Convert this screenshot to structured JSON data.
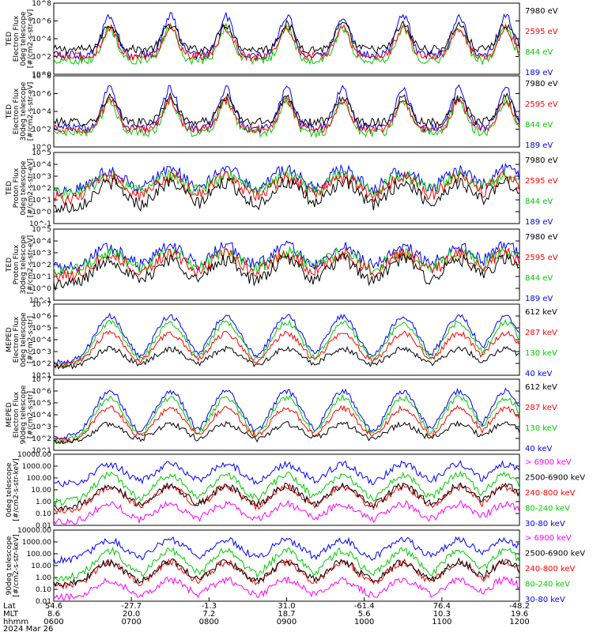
{
  "chart_data": {
    "type": "line",
    "x_header_labels": [
      "Lat",
      "MLT",
      "hhmm"
    ],
    "date": "2024 Mar 26",
    "x_ticks": [
      {
        "lat": "54.6",
        "mlt": "8.6",
        "hhmm": "0600"
      },
      {
        "lat": "-27.7",
        "mlt": "20.0",
        "hhmm": "0700"
      },
      {
        "lat": "-1.3",
        "mlt": "7.2",
        "hhmm": "0800"
      },
      {
        "lat": "31.0",
        "mlt": "18.7",
        "hhmm": "0900"
      },
      {
        "lat": "-61.4",
        "mlt": "5.6",
        "hhmm": "1000"
      },
      {
        "lat": "76.4",
        "mlt": "10.3",
        "hhmm": "1100"
      },
      {
        "lat": "-48.2",
        "mlt": "19.6",
        "hhmm": "1200"
      }
    ],
    "panels": [
      {
        "ylabel": [
          "TED",
          "Electron Flux",
          "0deg telescope",
          "[#/cm2-s-str-eV]"
        ],
        "yscale": "log",
        "ylim_exp": [
          0,
          8
        ],
        "yticks": [
          "10^0",
          "10^2",
          "10^4",
          "10^6",
          "10^8"
        ],
        "legend": [
          {
            "label": "7980 eV",
            "color": "#000000"
          },
          {
            "label": "2595 eV",
            "color": "#ff0000"
          },
          {
            "label": "844 eV",
            "color": "#00cc00"
          },
          {
            "label": "189 eV",
            "color": "#0000ff"
          }
        ]
      },
      {
        "ylabel": [
          "TED",
          "Electron Flux",
          "30deg telescope",
          "[#/cm2-s-str-eV]"
        ],
        "yscale": "log",
        "ylim_exp": [
          0,
          8
        ],
        "yticks": [
          "10^0",
          "10^2",
          "10^4",
          "10^6",
          "10^8"
        ],
        "legend": [
          {
            "label": "7980 eV",
            "color": "#000000"
          },
          {
            "label": "2595 eV",
            "color": "#ff0000"
          },
          {
            "label": "844 eV",
            "color": "#00cc00"
          },
          {
            "label": "189 eV",
            "color": "#0000ff"
          }
        ]
      },
      {
        "ylabel": [
          "TED",
          "Proton Flux",
          "0deg telescope",
          "[#/cm2-s-str-eV]"
        ],
        "yscale": "log",
        "ylim_exp": [
          -1,
          5
        ],
        "yticks": [
          "10^-1",
          "10^0",
          "10^1",
          "10^2",
          "10^3",
          "10^4",
          "10^5"
        ],
        "legend": [
          {
            "label": "7980 eV",
            "color": "#000000"
          },
          {
            "label": "2595 eV",
            "color": "#ff0000"
          },
          {
            "label": "844 eV",
            "color": "#00cc00"
          },
          {
            "label": "189 eV",
            "color": "#0000ff"
          }
        ]
      },
      {
        "ylabel": [
          "TED",
          "Proton Flux",
          "30deg telescope",
          "[#/cm2-s-str-eV]"
        ],
        "yscale": "log",
        "ylim_exp": [
          -1,
          5
        ],
        "yticks": [
          "10^-1",
          "10^0",
          "10^1",
          "10^2",
          "10^3",
          "10^4",
          "10^5"
        ],
        "legend": [
          {
            "label": "7980 eV",
            "color": "#000000"
          },
          {
            "label": "2595 eV",
            "color": "#ff0000"
          },
          {
            "label": "844 eV",
            "color": "#00cc00"
          },
          {
            "label": "189 eV",
            "color": "#0000ff"
          }
        ]
      },
      {
        "ylabel": [
          "MEPED",
          "Electron Flux",
          "0deg telescope",
          "[#/cm2-s-str]"
        ],
        "yscale": "log",
        "ylim_exp": [
          1,
          7
        ],
        "yticks": [
          "10^1",
          "10^2",
          "10^3",
          "10^4",
          "10^5",
          "10^6",
          "10^7"
        ],
        "legend": [
          {
            "label": "612 keV",
            "color": "#000000"
          },
          {
            "label": "287 keV",
            "color": "#ff0000"
          },
          {
            "label": "130 keV",
            "color": "#00cc00"
          },
          {
            "label": "40 keV",
            "color": "#0000ff"
          }
        ]
      },
      {
        "ylabel": [
          "MEPED",
          "Electron Flux",
          "90deg telescope",
          "[#/cm2-s-str]"
        ],
        "yscale": "log",
        "ylim_exp": [
          1,
          7
        ],
        "yticks": [
          "10^1",
          "10^2",
          "10^3",
          "10^4",
          "10^5",
          "10^6",
          "10^7"
        ],
        "legend": [
          {
            "label": "612 keV",
            "color": "#000000"
          },
          {
            "label": "287 keV",
            "color": "#ff0000"
          },
          {
            "label": "130 keV",
            "color": "#00cc00"
          },
          {
            "label": "40 keV",
            "color": "#0000ff"
          }
        ]
      },
      {
        "ylabel": [
          "0deg telescope",
          "[#/cm2-s-str-keV]"
        ],
        "yscale": "log",
        "ylim_exp": [
          -2,
          4
        ],
        "yticks": [
          "0.01",
          "0.10",
          "1.00",
          "10.00",
          "100.00",
          "1000.00",
          "10000.00"
        ],
        "legend": [
          {
            "label": "> 6900 keV",
            "color": "#ff00ff"
          },
          {
            "label": "2500-6900 keV",
            "color": "#000000"
          },
          {
            "label": "240-800 keV",
            "color": "#ff0000"
          },
          {
            "label": "80-240 keV",
            "color": "#00cc00"
          },
          {
            "label": "30-80 keV",
            "color": "#0000ff"
          }
        ]
      },
      {
        "ylabel": [
          "90deg telescope",
          "[#/cm2-s-str-keV]"
        ],
        "yscale": "log",
        "ylim_exp": [
          -2,
          4
        ],
        "yticks": [
          "0.01",
          "0.10",
          "1.00",
          "10.00",
          "100.00",
          "1000.00",
          "10000.00"
        ],
        "legend": [
          {
            "label": "> 6900 keV",
            "color": "#ff00ff"
          },
          {
            "label": "2500-6900 keV",
            "color": "#000000"
          },
          {
            "label": "240-800 keV",
            "color": "#ff0000"
          },
          {
            "label": "80-240 keV",
            "color": "#00cc00"
          },
          {
            "label": "30-80 keV",
            "color": "#0000ff"
          }
        ]
      }
    ]
  }
}
